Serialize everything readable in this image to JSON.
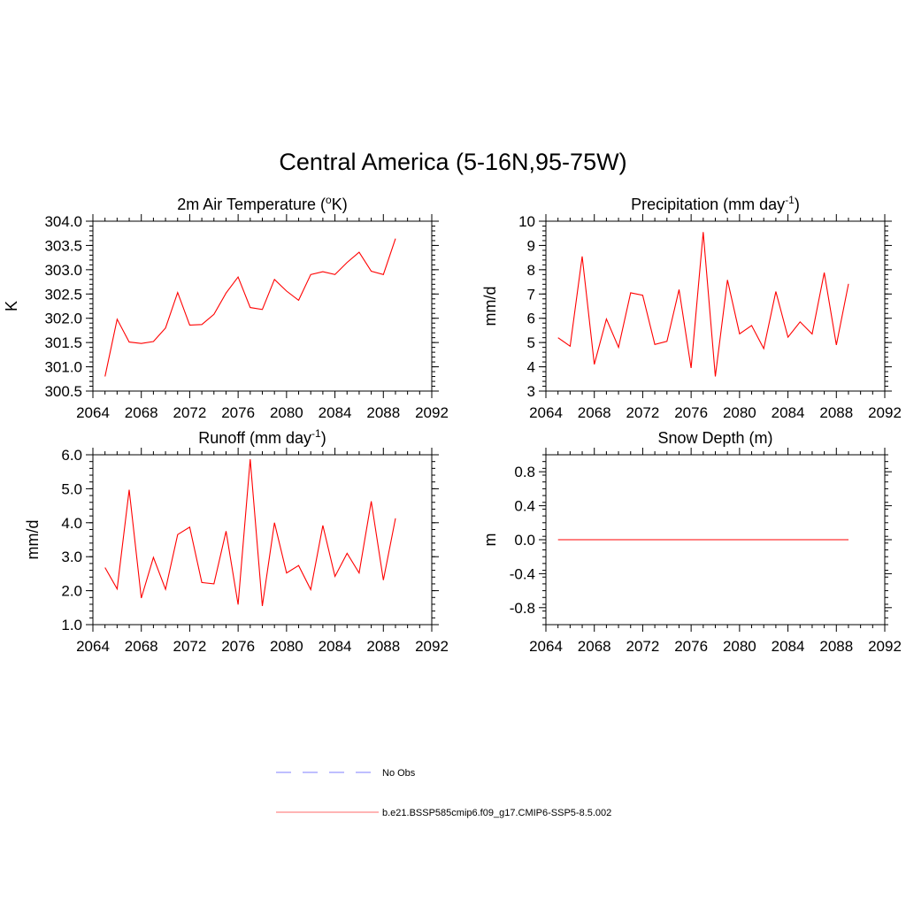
{
  "title": "Central America (5-16N,95-75W)",
  "colors": {
    "model": "#ff0000",
    "obs": "#9999ff",
    "legend_model": "#ff8888"
  },
  "legend": [
    {
      "label": "No Obs",
      "style": "dashed",
      "color": "#9999ff"
    },
    {
      "label": "b.e21.BSSP585cmip6.f09_g17.CMIP6-SSP5-8.5.002",
      "style": "solid",
      "color": "#ff8888"
    }
  ],
  "chart_data": [
    {
      "type": "line",
      "title": "2m Air Temperature (",
      "title_sup": "o",
      "title_after": "K)",
      "ylabel": "K",
      "xlim": [
        2064,
        2092
      ],
      "ylim": [
        300.5,
        304.0
      ],
      "xticks": [
        "2064",
        "2068",
        "2072",
        "2076",
        "2080",
        "2084",
        "2088",
        "2092"
      ],
      "yticks": [
        "300.5",
        "301.0",
        "301.5",
        "302.0",
        "302.5",
        "303.0",
        "303.5",
        "304.0"
      ],
      "x": [
        2065,
        2066,
        2067,
        2068,
        2069,
        2070,
        2071,
        2072,
        2073,
        2074,
        2075,
        2076,
        2077,
        2078,
        2079,
        2080,
        2081,
        2082,
        2083,
        2084,
        2085,
        2086,
        2087,
        2088,
        2089
      ],
      "series": [
        {
          "name": "b.e21.BSSP585cmip6.f09_g17.CMIP6-SSP5-8.5.002",
          "values": [
            300.8,
            301.98,
            301.51,
            301.48,
            301.52,
            301.8,
            302.53,
            301.86,
            301.87,
            302.08,
            302.52,
            302.85,
            302.22,
            302.18,
            302.8,
            302.56,
            302.37,
            302.9,
            302.96,
            302.9,
            303.15,
            303.36,
            302.97,
            302.9,
            303.64
          ]
        }
      ]
    },
    {
      "type": "line",
      "title": "Precipitation (mm day",
      "title_sup": "-1",
      "title_after": ")",
      "ylabel": "mm/d",
      "xlim": [
        2064,
        2092
      ],
      "ylim": [
        3,
        10
      ],
      "xticks": [
        "2064",
        "2068",
        "2072",
        "2076",
        "2080",
        "2084",
        "2088",
        "2092"
      ],
      "yticks": [
        "3",
        "4",
        "5",
        "6",
        "7",
        "8",
        "9",
        "10"
      ],
      "x": [
        2065,
        2066,
        2067,
        2068,
        2069,
        2070,
        2071,
        2072,
        2073,
        2074,
        2075,
        2076,
        2077,
        2078,
        2079,
        2080,
        2081,
        2082,
        2083,
        2084,
        2085,
        2086,
        2087,
        2088,
        2089
      ],
      "series": [
        {
          "name": "b.e21.BSSP585cmip6.f09_g17.CMIP6-SSP5-8.5.002",
          "values": [
            5.2,
            4.85,
            8.55,
            4.1,
            5.97,
            4.8,
            7.05,
            6.95,
            4.92,
            5.05,
            7.18,
            3.95,
            9.55,
            3.6,
            7.58,
            5.36,
            5.7,
            4.75,
            7.1,
            5.22,
            5.85,
            5.35,
            7.88,
            4.9,
            7.42
          ]
        }
      ]
    },
    {
      "type": "line",
      "title": "Runoff (mm day",
      "title_sup": "-1",
      "title_after": ")",
      "ylabel": "mm/d",
      "xlim": [
        2064,
        2092
      ],
      "ylim": [
        1.0,
        6.0
      ],
      "xticks": [
        "2064",
        "2068",
        "2072",
        "2076",
        "2080",
        "2084",
        "2088",
        "2092"
      ],
      "yticks": [
        "1.0",
        "2.0",
        "3.0",
        "4.0",
        "5.0",
        "6.0"
      ],
      "x": [
        2065,
        2066,
        2067,
        2068,
        2069,
        2070,
        2071,
        2072,
        2073,
        2074,
        2075,
        2076,
        2077,
        2078,
        2079,
        2080,
        2081,
        2082,
        2083,
        2084,
        2085,
        2086,
        2087,
        2088,
        2089
      ],
      "series": [
        {
          "name": "b.e21.BSSP585cmip6.f09_g17.CMIP6-SSP5-8.5.002",
          "values": [
            2.68,
            2.05,
            4.97,
            1.78,
            2.98,
            2.04,
            3.65,
            3.87,
            2.24,
            2.2,
            3.75,
            1.59,
            5.87,
            1.55,
            4.0,
            2.52,
            2.74,
            2.03,
            3.92,
            2.42,
            3.1,
            2.52,
            4.63,
            2.31,
            4.13
          ]
        }
      ]
    },
    {
      "type": "line",
      "title": "Snow Depth (m)",
      "title_sup": "",
      "title_after": "",
      "ylabel": "m",
      "xlim": [
        2064,
        2092
      ],
      "ylim": [
        -1.0,
        1.0
      ],
      "xticks": [
        "2064",
        "2068",
        "2072",
        "2076",
        "2080",
        "2084",
        "2088",
        "2092"
      ],
      "yticks": [
        "-0.8",
        "-0.4",
        "0.0",
        "0.4",
        "0.8"
      ],
      "x": [
        2065,
        2066,
        2067,
        2068,
        2069,
        2070,
        2071,
        2072,
        2073,
        2074,
        2075,
        2076,
        2077,
        2078,
        2079,
        2080,
        2081,
        2082,
        2083,
        2084,
        2085,
        2086,
        2087,
        2088,
        2089
      ],
      "series": [
        {
          "name": "b.e21.BSSP585cmip6.f09_g17.CMIP6-SSP5-8.5.002",
          "values": [
            0,
            0,
            0,
            0,
            0,
            0,
            0,
            0,
            0,
            0,
            0,
            0,
            0,
            0,
            0,
            0,
            0,
            0,
            0,
            0,
            0,
            0,
            0,
            0,
            0
          ]
        }
      ]
    }
  ]
}
